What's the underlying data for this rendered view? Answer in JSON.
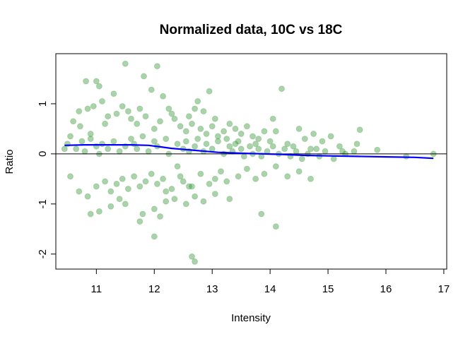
{
  "chart_data": {
    "type": "scatter",
    "title": "Normalized data, 10C vs 18C",
    "xlabel": "Intensity",
    "ylabel": "Ratio",
    "xlim": [
      10.3,
      17.05
    ],
    "ylim": [
      -2.3,
      2.0
    ],
    "xticks": [
      "11",
      "12",
      "13",
      "14",
      "15",
      "16",
      "17"
    ],
    "yticks": [
      "-2",
      "-1",
      "0",
      "1"
    ],
    "grid": false,
    "point_color": "#228B22",
    "point_opacity": 0.38,
    "reference_line": {
      "y": 0,
      "color": "#000000"
    },
    "fit_line": {
      "color": "#0000FF",
      "x": [
        10.45,
        10.8,
        11.2,
        11.6,
        11.9,
        12.1,
        12.3,
        12.5,
        12.7,
        12.9,
        13.1,
        13.3,
        13.6,
        13.9,
        14.2,
        14.6,
        15.0,
        15.5,
        16.0,
        16.5,
        16.82
      ],
      "y": [
        0.17,
        0.18,
        0.18,
        0.18,
        0.17,
        0.14,
        0.11,
        0.09,
        0.07,
        0.05,
        0.03,
        0.02,
        0.01,
        0.0,
        -0.01,
        -0.03,
        -0.04,
        -0.05,
        -0.06,
        -0.07,
        -0.09
      ]
    },
    "series": [
      {
        "x": [
          11.5,
          11.95,
          11.82,
          12.05,
          12.15,
          14.2,
          11.0,
          10.82,
          11.05,
          12.75,
          11.3,
          11.1,
          10.95,
          12.95,
          12.25,
          12.85,
          13.6,
          13.3,
          14.05,
          14.1,
          14.5,
          14.75,
          15.05,
          15.55,
          15.85,
          16.35,
          16.82,
          10.45,
          10.55,
          10.6,
          10.7,
          10.72,
          10.85,
          10.9,
          11.15,
          11.2,
          11.35,
          11.45,
          11.55,
          11.6,
          11.7,
          11.75,
          11.85,
          12.0,
          12.1,
          12.3,
          12.35,
          12.45,
          12.55,
          12.6,
          12.65,
          12.7,
          12.8,
          12.9,
          13.0,
          13.05,
          13.1,
          13.2,
          13.25,
          13.4,
          13.45,
          13.5,
          13.7,
          13.75,
          13.8,
          13.9,
          14.0,
          14.3,
          14.4,
          14.6,
          14.8,
          14.9,
          15.2,
          15.25,
          15.5,
          10.5,
          10.65,
          10.75,
          10.8,
          10.9,
          11.0,
          11.05,
          11.1,
          11.2,
          11.3,
          11.4,
          11.5,
          11.6,
          11.65,
          11.7,
          11.8,
          11.9,
          12.0,
          12.05,
          12.2,
          12.25,
          12.4,
          12.5,
          12.55,
          12.6,
          12.7,
          12.75,
          12.85,
          12.9,
          13.0,
          13.1,
          13.2,
          13.3,
          13.35,
          13.4,
          13.5,
          13.55,
          13.65,
          13.7,
          13.8,
          13.85,
          13.95,
          14.05,
          14.15,
          14.25,
          14.35,
          14.45,
          14.55,
          14.65,
          14.7,
          14.85,
          14.95,
          15.1,
          15.3,
          15.45,
          10.55,
          10.7,
          10.85,
          11.0,
          11.15,
          11.25,
          11.35,
          11.45,
          11.55,
          11.65,
          11.75,
          11.85,
          11.95,
          12.05,
          12.15,
          12.3,
          12.45,
          12.5,
          12.65,
          12.8,
          12.95,
          13.05,
          13.15,
          13.25,
          13.45,
          13.6,
          13.75,
          13.9,
          14.1,
          14.3,
          14.5,
          14.7,
          11.05,
          11.25,
          11.5,
          11.8,
          12.0,
          12.2,
          12.35,
          12.55,
          12.7,
          12.85,
          13.05,
          13.3,
          12.65,
          12.7,
          11.75,
          12.1,
          13.85,
          14.1,
          12.0,
          12.2,
          12.4,
          12.6,
          10.9,
          11.4
        ],
        "y": [
          1.8,
          1.28,
          1.55,
          1.75,
          1.15,
          1.3,
          1.45,
          1.45,
          1.35,
          1.05,
          1.2,
          1.05,
          0.95,
          1.25,
          0.9,
          0.85,
          0.55,
          0.6,
          0.7,
          0.45,
          0.5,
          0.4,
          0.35,
          0.48,
          0.08,
          -0.05,
          0.0,
          0.1,
          0.35,
          0.65,
          0.85,
          0.55,
          0.9,
          0.4,
          0.6,
          0.75,
          0.8,
          0.95,
          0.85,
          0.7,
          0.6,
          0.9,
          0.75,
          0.5,
          0.65,
          0.8,
          0.7,
          0.55,
          0.45,
          0.75,
          0.6,
          0.9,
          0.5,
          0.4,
          0.55,
          0.7,
          0.35,
          0.45,
          0.3,
          0.5,
          0.25,
          0.4,
          0.35,
          0.2,
          0.3,
          0.45,
          0.25,
          0.2,
          0.15,
          0.3,
          0.1,
          0.25,
          0.15,
          0.05,
          0.2,
          0.2,
          0.1,
          0.25,
          0.05,
          0.3,
          0.15,
          0.0,
          0.2,
          0.1,
          0.25,
          0.05,
          0.15,
          0.3,
          0.2,
          0.1,
          0.35,
          0.05,
          0.25,
          0.15,
          0.3,
          0.0,
          0.2,
          0.1,
          0.25,
          0.05,
          0.15,
          0.3,
          0.05,
          0.2,
          0.1,
          0.25,
          0.0,
          0.15,
          0.05,
          0.2,
          0.1,
          -0.05,
          0.15,
          0.0,
          0.1,
          -0.05,
          0.05,
          0.15,
          0.0,
          0.1,
          -0.05,
          0.05,
          -0.1,
          0.0,
          0.1,
          -0.05,
          0.05,
          -0.1,
          0.0,
          0.05,
          -0.45,
          -0.75,
          -0.85,
          -0.65,
          -0.55,
          -0.75,
          -0.6,
          -0.5,
          -0.7,
          -0.45,
          -0.65,
          -0.55,
          -0.4,
          -0.6,
          -0.5,
          -0.7,
          -0.45,
          -0.55,
          -0.65,
          -0.4,
          -0.6,
          -0.5,
          -0.35,
          -0.55,
          -0.45,
          -0.3,
          -0.5,
          -0.4,
          -0.25,
          -0.45,
          -0.35,
          -0.5,
          -1.15,
          -1.05,
          -1.0,
          -1.2,
          -1.1,
          -0.95,
          -0.9,
          -1.0,
          -0.85,
          -0.95,
          -0.8,
          -0.9,
          -2.05,
          -2.15,
          -1.35,
          -1.25,
          -1.2,
          -1.45,
          -1.65,
          -0.75,
          -0.25,
          -0.65,
          -1.2,
          -0.9
        ]
      }
    ]
  }
}
